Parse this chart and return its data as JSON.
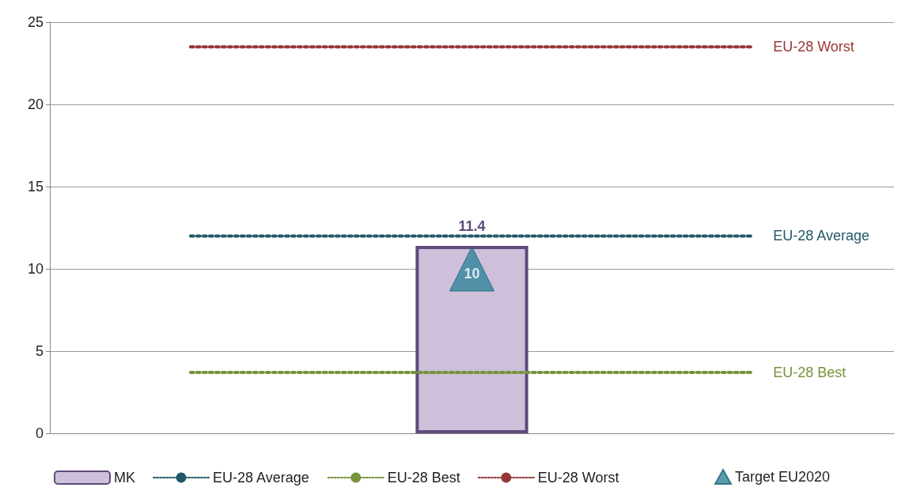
{
  "chart_data": {
    "type": "bar",
    "categories": [
      null,
      null,
      null
    ],
    "series": [
      {
        "name": "MK",
        "color": "#ccc0da",
        "values": [
          null,
          11.4,
          null
        ],
        "value_labels": [
          null,
          "11.4",
          null
        ]
      },
      {
        "name": "EU-28 Average",
        "type": "line",
        "color": "#215968",
        "values": [
          12.0,
          12.0,
          12.0
        ]
      },
      {
        "name": "EU-28 Best",
        "type": "line",
        "color": "#77933c",
        "values": [
          3.7,
          3.7,
          3.7
        ]
      },
      {
        "name": "EU-28 Worst",
        "type": "line",
        "color": "#953735",
        "values": [
          23.5,
          23.5,
          23.5
        ]
      },
      {
        "name": "Target EU2020",
        "type": "scatter",
        "color": "#31849b",
        "marker": "triangle",
        "values": [
          null,
          10,
          null
        ],
        "value_labels": [
          null,
          "10",
          null
        ]
      }
    ],
    "line_style": "dotted",
    "ylim": [
      0,
      25
    ],
    "yticks": [
      0,
      5,
      10,
      15,
      20,
      25
    ],
    "grid": "y",
    "legend": "bottom"
  }
}
